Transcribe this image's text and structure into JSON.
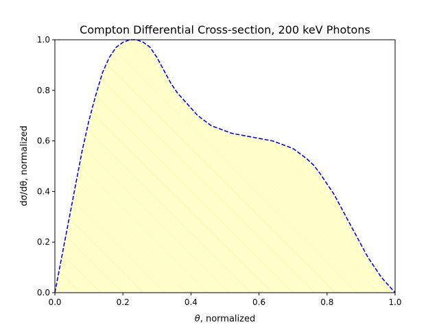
{
  "chart_data": {
    "type": "area",
    "title": "Compton Differential Cross-section, 200 keV Photons",
    "xlabel_symbol": "θ",
    "xlabel_rest": ", normalized",
    "ylabel": "dσ/dθ, normalized",
    "xlim": [
      0,
      1
    ],
    "ylim": [
      0,
      1
    ],
    "x_ticks": [
      0.0,
      0.2,
      0.4,
      0.6,
      0.8,
      1.0
    ],
    "y_ticks": [
      0.0,
      0.2,
      0.4,
      0.6,
      0.8,
      1.0
    ],
    "x_tick_labels": [
      "0.0",
      "0.2",
      "0.4",
      "0.6",
      "0.8",
      "1.0"
    ],
    "y_tick_labels": [
      "0.0",
      "0.2",
      "0.4",
      "0.6",
      "0.8",
      "1.0"
    ],
    "grid": false,
    "legend": "none",
    "series": [
      {
        "line_style": "dashed",
        "line_color": "#0000ff",
        "fill_color": "#ffffcc",
        "hatch_color": "#f5f5a0",
        "x": [
          0.0,
          0.02,
          0.04,
          0.06,
          0.08,
          0.1,
          0.12,
          0.14,
          0.16,
          0.18,
          0.2,
          0.22,
          0.24,
          0.26,
          0.28,
          0.3,
          0.32,
          0.34,
          0.36,
          0.38,
          0.4,
          0.42,
          0.44,
          0.46,
          0.48,
          0.5,
          0.52,
          0.54,
          0.56,
          0.58,
          0.6,
          0.62,
          0.64,
          0.66,
          0.68,
          0.7,
          0.72,
          0.74,
          0.76,
          0.78,
          0.8,
          0.82,
          0.84,
          0.86,
          0.88,
          0.9,
          0.92,
          0.94,
          0.96,
          0.98,
          1.0
        ],
        "y": [
          0.0,
          0.14,
          0.28,
          0.42,
          0.56,
          0.68,
          0.78,
          0.87,
          0.93,
          0.97,
          0.99,
          1.0,
          1.0,
          0.99,
          0.97,
          0.93,
          0.88,
          0.83,
          0.79,
          0.76,
          0.73,
          0.7,
          0.68,
          0.66,
          0.65,
          0.64,
          0.63,
          0.625,
          0.62,
          0.615,
          0.61,
          0.605,
          0.6,
          0.59,
          0.58,
          0.57,
          0.55,
          0.53,
          0.505,
          0.47,
          0.43,
          0.39,
          0.34,
          0.29,
          0.24,
          0.19,
          0.14,
          0.1,
          0.06,
          0.03,
          0.0
        ]
      }
    ]
  }
}
